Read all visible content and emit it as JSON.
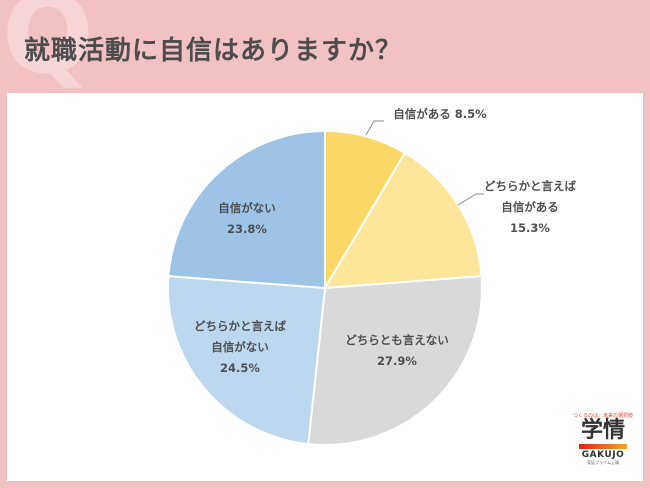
{
  "page": {
    "title": "就職活動に自信はありますか？",
    "q_watermark": "Q"
  },
  "logo": {
    "tagline": "つくるのは、未来の選択肢",
    "name_jp": "学情",
    "name_en": "GAKUJO",
    "sub": "東証プライム上場"
  },
  "colors": {
    "background": "#f2c1c3",
    "panel": "#ffffff",
    "slice_1": "#fdd868",
    "slice_2": "#fee599",
    "slice_3": "#d9d9d9",
    "slice_4": "#bdd7ee",
    "slice_5": "#9dc3e6"
  },
  "chart_data": {
    "type": "pie",
    "title": "就職活動に自信はありますか？",
    "categories": [
      "自信がある",
      "どちらかと言えば自信がある",
      "どちらとも言えない",
      "どちらかと言えば自信がない",
      "自信がない"
    ],
    "values": [
      8.5,
      15.3,
      27.9,
      24.5,
      23.8
    ],
    "unit": "%",
    "start_angle": "12 o'clock, clockwise",
    "labels": [
      {
        "lines": [
          "自信がある 8.5%"
        ]
      },
      {
        "lines": [
          "どちらかと言えば",
          "自信がある",
          "15.3%"
        ]
      },
      {
        "lines": [
          "どちらとも言えない",
          "27.9%"
        ]
      },
      {
        "lines": [
          "どちらかと言えば",
          "自信がない",
          "24.5%"
        ]
      },
      {
        "lines": [
          "自信がない",
          "23.8%"
        ]
      }
    ]
  }
}
